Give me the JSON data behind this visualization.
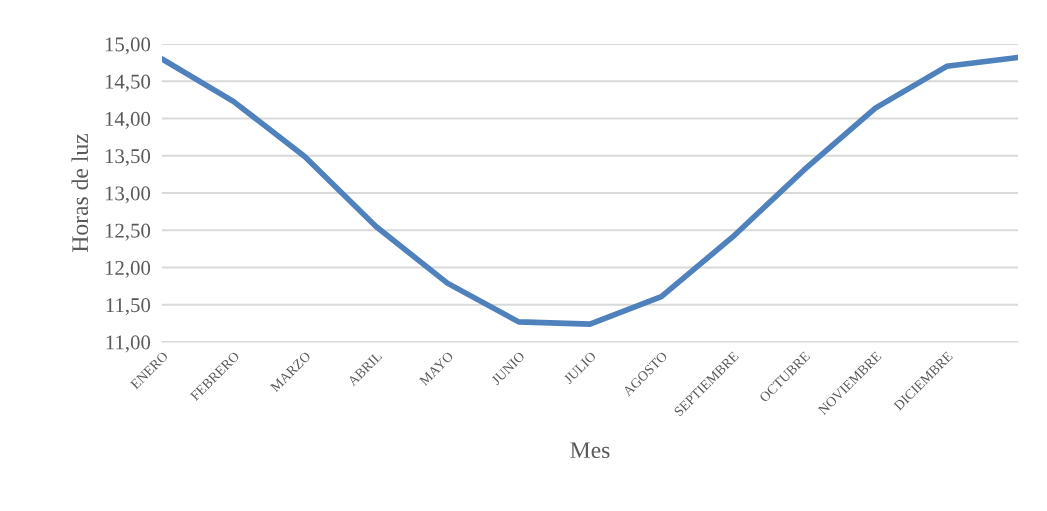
{
  "chart_data": {
    "type": "line",
    "xlabel": "Mes",
    "ylabel": "Horas de luz",
    "categories": [
      "ENERO",
      "FEBRERO",
      "MARZO",
      "ABRIL",
      "MAYO",
      "JUNIO",
      "JULIO",
      "AGOSTO",
      "SEPTIEMBRE",
      "OCTUBRE",
      "NOVIEMBRE",
      "DICIEMBRE",
      null
    ],
    "series": [
      {
        "color": "#4f81bd",
        "values": [
          14.8,
          14.23,
          13.49,
          12.55,
          11.79,
          11.27,
          11.24,
          11.61,
          12.41,
          13.31,
          14.14,
          14.7,
          14.82
        ]
      }
    ],
    "ylim": [
      11,
      15
    ],
    "yticks": [
      {
        "value": 11,
        "label": "11,00"
      },
      {
        "value": 11.5,
        "label": "11,50"
      },
      {
        "value": 12,
        "label": "12,00"
      },
      {
        "value": 12.5,
        "label": "12,50"
      },
      {
        "value": 13,
        "label": "13,00"
      },
      {
        "value": 13.5,
        "label": "13,50"
      },
      {
        "value": 14,
        "label": "14,00"
      },
      {
        "value": 14.5,
        "label": "14,50"
      },
      {
        "value": 15,
        "label": "15,00"
      }
    ],
    "grid": "y",
    "legend": false,
    "marker": "none",
    "line_style": "solid"
  }
}
